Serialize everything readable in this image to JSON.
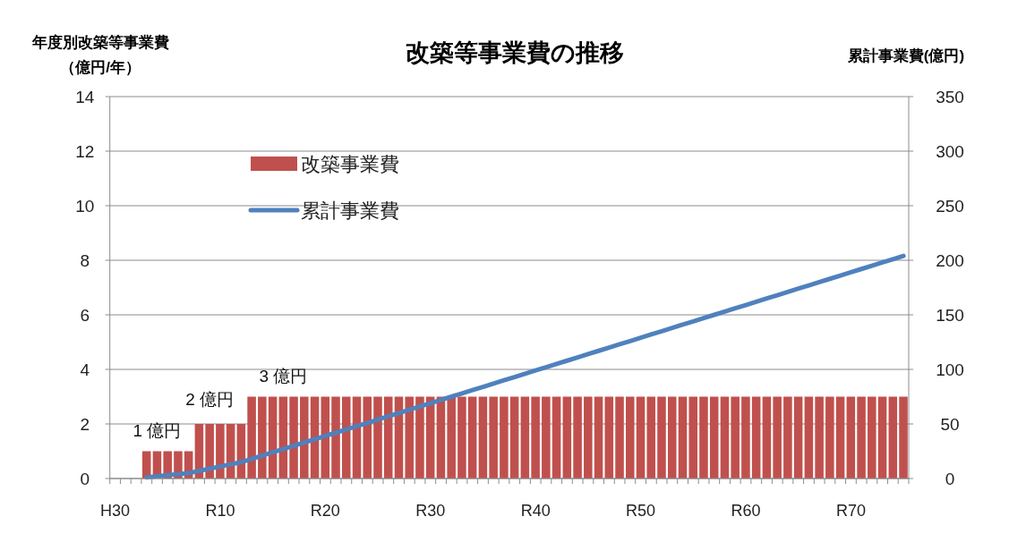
{
  "chart_data": {
    "type": "bar",
    "title": "改築等事業費の推移",
    "ylabel": "年度別改築等事業費（億円/年）",
    "y2label": "累計事業費(億円)",
    "categories": [
      "H30",
      null,
      null,
      null,
      null,
      null,
      null,
      null,
      null,
      null,
      "R10",
      null,
      null,
      null,
      null,
      null,
      null,
      null,
      null,
      null,
      "R20",
      null,
      null,
      null,
      null,
      null,
      null,
      null,
      null,
      null,
      "R30",
      null,
      null,
      null,
      null,
      null,
      null,
      null,
      null,
      null,
      "R40",
      null,
      null,
      null,
      null,
      null,
      null,
      null,
      null,
      null,
      "R50",
      null,
      null,
      null,
      null,
      null,
      null,
      null,
      null,
      null,
      "R60",
      null,
      null,
      null,
      null,
      null,
      null,
      null,
      null,
      null,
      "R70",
      null,
      null,
      null,
      null,
      null
    ],
    "series": [
      {
        "name": "改築事業費",
        "color": "#c0504d",
        "values": [
          null,
          null,
          null,
          1,
          1,
          1,
          1,
          1,
          2,
          2,
          2,
          2,
          2,
          3,
          3,
          3,
          3,
          3,
          3,
          3,
          3,
          3,
          3,
          3,
          3,
          3,
          3,
          3,
          3,
          3,
          3,
          3,
          3,
          3,
          3,
          3,
          3,
          3,
          3,
          3,
          3,
          3,
          3,
          3,
          3,
          3,
          3,
          3,
          3,
          3,
          3,
          3,
          3,
          3,
          3,
          3,
          3,
          3,
          3,
          3,
          3,
          3,
          3,
          3,
          3,
          3,
          3,
          3,
          3,
          3,
          3,
          3,
          3,
          3,
          3,
          3
        ]
      },
      {
        "name": "累計事業費",
        "type": "line",
        "axis": "y2",
        "color": "#4f81bd",
        "values": [
          null,
          null,
          null,
          1,
          2,
          3,
          4,
          5,
          7,
          9,
          11,
          13,
          15,
          18,
          21,
          24,
          27,
          30,
          33,
          36,
          39,
          42,
          45,
          48,
          51,
          54,
          57,
          60,
          63,
          66,
          69,
          72,
          75,
          78,
          81,
          84,
          87,
          90,
          93,
          96,
          99,
          102,
          105,
          108,
          111,
          114,
          117,
          120,
          123,
          126,
          129,
          132,
          135,
          138,
          141,
          144,
          147,
          150,
          153,
          156,
          159,
          162,
          165,
          168,
          171,
          174,
          177,
          180,
          183,
          186,
          189,
          192,
          195,
          198,
          201,
          204
        ]
      }
    ],
    "ylim": [
      0,
      14
    ],
    "yticks": [
      0,
      2,
      4,
      6,
      8,
      10,
      12,
      14
    ],
    "y2lim": [
      0,
      350
    ],
    "y2ticks": [
      0,
      50,
      100,
      150,
      200,
      250,
      300,
      350
    ],
    "grid": "y",
    "legend": "top left",
    "annotations": [
      "1 億円",
      "2 億円",
      "3 億円"
    ]
  }
}
